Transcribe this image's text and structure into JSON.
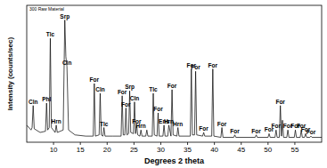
{
  "chart_data": {
    "type": "line",
    "title": "300 Raw Material",
    "x_label": "Degrees 2 theta",
    "y_label": "Intensity (counts/sec)",
    "color": "#000000",
    "tick_labels": "x",
    "grid": false,
    "xlim": [
      5,
      60
    ],
    "xticks": [
      10,
      15,
      20,
      25,
      30,
      35,
      40,
      45,
      50,
      55
    ],
    "ylim": [
      0,
      112
    ],
    "x": [
      5.0,
      5.8,
      6.0,
      6.2,
      6.4,
      7.5,
      8.5,
      8.7,
      8.9,
      9.2,
      9.4,
      9.6,
      10.3,
      10.5,
      10.7,
      11.8,
      12.1,
      12.3,
      12.5,
      12.8,
      14.0,
      16.0,
      17.4,
      17.6,
      17.8,
      18.5,
      18.7,
      18.9,
      19.2,
      19.4,
      19.6,
      21.0,
      22.6,
      22.8,
      23.0,
      23.3,
      23.5,
      23.7,
      24.0,
      24.2,
      24.4,
      24.9,
      25.1,
      25.3,
      25.5,
      25.7,
      26.1,
      26.3,
      26.5,
      27.2,
      27.4,
      27.6,
      28.4,
      28.6,
      28.8,
      29.3,
      29.5,
      29.7,
      30.4,
      30.6,
      30.8,
      31.3,
      31.5,
      31.9,
      32.1,
      32.3,
      33.0,
      33.2,
      33.4,
      35.5,
      35.7,
      35.9,
      36.3,
      36.5,
      36.7,
      37.8,
      38.0,
      38.2,
      39.5,
      39.7,
      39.9,
      41.2,
      41.4,
      41.6,
      43.6,
      43.8,
      44.0,
      47.6,
      47.8,
      48.0,
      50.0,
      50.2,
      50.4,
      51.3,
      51.5,
      51.7,
      52.1,
      52.3,
      52.5,
      52.7,
      52.9,
      53.5,
      53.7,
      53.9,
      54.9,
      55.1,
      55.3,
      56.0,
      56.2,
      56.4,
      56.8,
      57.0,
      57.2,
      57.8,
      58.0,
      58.2,
      60.0
    ],
    "values": [
      14,
      10,
      12,
      30,
      11,
      8,
      9,
      32,
      10,
      12,
      85,
      12,
      8,
      14,
      8,
      10,
      100,
      70,
      62,
      10,
      6,
      5,
      5,
      48,
      5,
      6,
      40,
      6,
      5,
      12,
      5,
      5,
      5,
      38,
      6,
      6,
      28,
      6,
      7,
      42,
      8,
      7,
      33,
      7,
      14,
      6,
      5,
      10,
      5,
      5,
      10,
      5,
      5,
      40,
      6,
      5,
      24,
      5,
      5,
      14,
      5,
      5,
      14,
      5,
      43,
      6,
      5,
      12,
      5,
      5,
      60,
      6,
      6,
      58,
      6,
      5,
      8,
      5,
      5,
      60,
      5,
      4,
      12,
      4,
      4,
      6,
      4,
      4,
      6,
      4,
      4,
      7,
      4,
      4,
      10,
      4,
      4,
      30,
      5,
      18,
      4,
      4,
      10,
      4,
      4,
      10,
      4,
      4,
      10,
      4,
      4,
      7,
      4,
      4,
      5,
      4,
      4
    ],
    "annotations": [
      {
        "text": "Cln",
        "x": 6.2
      },
      {
        "text": "Phl",
        "x": 8.7
      },
      {
        "text": "Tlc",
        "x": 9.4
      },
      {
        "text": "Hrn",
        "x": 10.5
      },
      {
        "text": "Srp",
        "x": 12.1
      },
      {
        "text": "Cln",
        "x": 12.5
      },
      {
        "text": "For",
        "x": 17.6
      },
      {
        "text": "Cln",
        "x": 18.7
      },
      {
        "text": "Tlc",
        "x": 19.4
      },
      {
        "text": "For",
        "x": 22.8
      },
      {
        "text": "For",
        "x": 23.5
      },
      {
        "text": "Srp",
        "x": 24.2
      },
      {
        "text": "Cln",
        "x": 25.1
      },
      {
        "text": "For",
        "x": 25.5
      },
      {
        "text": "Hrn",
        "x": 26.3
      },
      {
        "text": "Tlc",
        "x": 28.6
      },
      {
        "text": "For",
        "x": 29.5
      },
      {
        "text": "Ens",
        "x": 30.6
      },
      {
        "text": "Hrn",
        "x": 31.5
      },
      {
        "text": "For",
        "x": 32.1
      },
      {
        "text": "Hrn",
        "x": 33.2
      },
      {
        "text": "For",
        "x": 35.7
      },
      {
        "text": "For",
        "x": 36.5
      },
      {
        "text": "For",
        "x": 38.0
      },
      {
        "text": "For",
        "x": 39.7
      },
      {
        "text": "For",
        "x": 41.4
      },
      {
        "text": "For",
        "x": 43.8
      },
      {
        "text": "For",
        "x": 47.8
      },
      {
        "text": "For",
        "x": 50.2
      },
      {
        "text": "For",
        "x": 51.5
      },
      {
        "text": "For",
        "x": 52.3
      },
      {
        "text": "For",
        "x": 53.7
      },
      {
        "text": "For",
        "x": 55.1
      },
      {
        "text": "For",
        "x": 56.2
      },
      {
        "text": "For",
        "x": 57.0
      },
      {
        "text": "For",
        "x": 58.0
      }
    ]
  }
}
